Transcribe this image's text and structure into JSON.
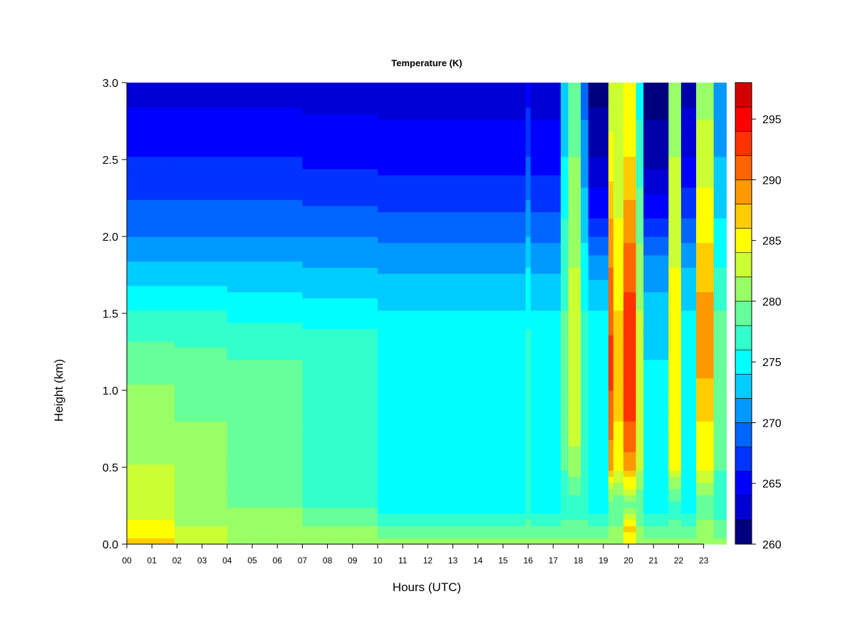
{
  "chart_data": {
    "type": "heatmap",
    "title": "Temperature (K)",
    "xlabel": "Hours (UTC)",
    "ylabel": "Height (km)",
    "x_ticks": [
      "00",
      "01",
      "02",
      "03",
      "04",
      "05",
      "06",
      "07",
      "08",
      "09",
      "10",
      "11",
      "12",
      "13",
      "14",
      "15",
      "16",
      "17",
      "18",
      "19",
      "20",
      "21",
      "22",
      "23"
    ],
    "y_ticks": [
      "0.0",
      "0.5",
      "1.0",
      "1.5",
      "2.0",
      "2.5",
      "3.0"
    ],
    "xlim": [
      0,
      23.9
    ],
    "ylim": [
      0,
      3.0
    ],
    "colorbar": {
      "ticks": [
        "260",
        "265",
        "270",
        "275",
        "280",
        "285",
        "290",
        "295"
      ],
      "range": [
        260,
        298
      ],
      "levels": [
        260,
        262,
        264,
        266,
        268,
        270,
        272,
        274,
        276,
        278,
        280,
        282,
        284,
        286,
        288,
        290,
        292,
        294,
        296,
        298
      ],
      "colors": [
        "#00007F",
        "#0000AA",
        "#0000D4",
        "#0000FF",
        "#0033FF",
        "#0066FF",
        "#0099FF",
        "#00CCFF",
        "#00FFFF",
        "#33FFCC",
        "#66FF99",
        "#99FF66",
        "#CCFF33",
        "#FFFF00",
        "#FFCC00",
        "#FF9900",
        "#FF6600",
        "#FF3300",
        "#FF0000",
        "#D40000",
        "#7F0000"
      ]
    },
    "profile_heights_km": [
      0.0,
      0.1,
      0.25,
      0.5,
      0.8,
      1.2,
      1.5,
      1.8,
      2.1,
      2.5,
      3.0
    ],
    "profiles": [
      {
        "hours": [
          0,
          1.9
        ],
        "temps_K": [
          289,
          287,
          285,
          284,
          283.5,
          281,
          278,
          274.5,
          271,
          268,
          265
        ]
      },
      {
        "hours": [
          1.9,
          4
        ],
        "temps_K": [
          285,
          284,
          283,
          282,
          282,
          280.5,
          278,
          274.5,
          271,
          268,
          265
        ]
      },
      {
        "hours": [
          4,
          7
        ],
        "temps_K": [
          284,
          283,
          282,
          281,
          281,
          280,
          277.5,
          274.5,
          271,
          268,
          265
        ]
      },
      {
        "hours": [
          7,
          10
        ],
        "temps_K": [
          283,
          282,
          280,
          279,
          279.5,
          280,
          277,
          274,
          271,
          267.5,
          265
        ]
      },
      {
        "hours": [
          10,
          15.9
        ],
        "temps_K": [
          283,
          281,
          277,
          277,
          277.5,
          278,
          276,
          273.5,
          270.5,
          267,
          265
        ]
      },
      {
        "hours": [
          15.9,
          16.1
        ],
        "temps_K": [
          283,
          281,
          278,
          278,
          279,
          279,
          277.5,
          276,
          273,
          270,
          267
        ]
      },
      {
        "hours": [
          16.1,
          17.3
        ],
        "temps_K": [
          283,
          281,
          277,
          277,
          277.5,
          278,
          276,
          273.5,
          270.5,
          267,
          265
        ]
      },
      {
        "hours": [
          17.3,
          17.6
        ],
        "temps_K": [
          283,
          281,
          279,
          280,
          281,
          281,
          280,
          279,
          278,
          276,
          274
        ]
      },
      {
        "hours": [
          17.6,
          18.1
        ],
        "temps_K": [
          283,
          281,
          279,
          283,
          285,
          286,
          285,
          284,
          283,
          282,
          280
        ]
      },
      {
        "hours": [
          18.1,
          18.4
        ],
        "temps_K": [
          283,
          281,
          279,
          279,
          280,
          279,
          278,
          277,
          275,
          273,
          271
        ]
      },
      {
        "hours": [
          18.4,
          19.2
        ],
        "temps_K": [
          283,
          280,
          277,
          277,
          277,
          277,
          276,
          273,
          268,
          264,
          261
        ]
      },
      {
        "hours": [
          19.2,
          19.4
        ],
        "temps_K": [
          284,
          282,
          280,
          290,
          293,
          295,
          293,
          292,
          290,
          287,
          284
        ]
      },
      {
        "hours": [
          19.4,
          19.8
        ],
        "temps_K": [
          284,
          282,
          280,
          287,
          288,
          289,
          288,
          287,
          286,
          285,
          284
        ]
      },
      {
        "hours": [
          19.8,
          20.3
        ],
        "temps_K": [
          286,
          289,
          281,
          291,
          294,
          296,
          295,
          293,
          291,
          288,
          286
        ]
      },
      {
        "hours": [
          20.3,
          20.6
        ],
        "temps_K": [
          284,
          282,
          280,
          284,
          285,
          285,
          284,
          283,
          281,
          279,
          277
        ]
      },
      {
        "hours": [
          20.6,
          21.6
        ],
        "temps_K": [
          283,
          280,
          277,
          276,
          276,
          276,
          275,
          273,
          268,
          263,
          261
        ]
      },
      {
        "hours": [
          21.6,
          22.1
        ],
        "temps_K": [
          283,
          281,
          279,
          286,
          287,
          287,
          287,
          286,
          285,
          284,
          282
        ]
      },
      {
        "hours": [
          22.1,
          22.7
        ],
        "temps_K": [
          283,
          280,
          277,
          277,
          277,
          277,
          276,
          274,
          270,
          266,
          263
        ]
      },
      {
        "hours": [
          22.7,
          23.4
        ],
        "temps_K": [
          284,
          283,
          280,
          286,
          288,
          291,
          291,
          289,
          287,
          285,
          283
        ]
      },
      {
        "hours": [
          23.4,
          23.9
        ],
        "temps_K": [
          283,
          281,
          279,
          280,
          281,
          281,
          280,
          278,
          276,
          274,
          272
        ]
      }
    ]
  }
}
